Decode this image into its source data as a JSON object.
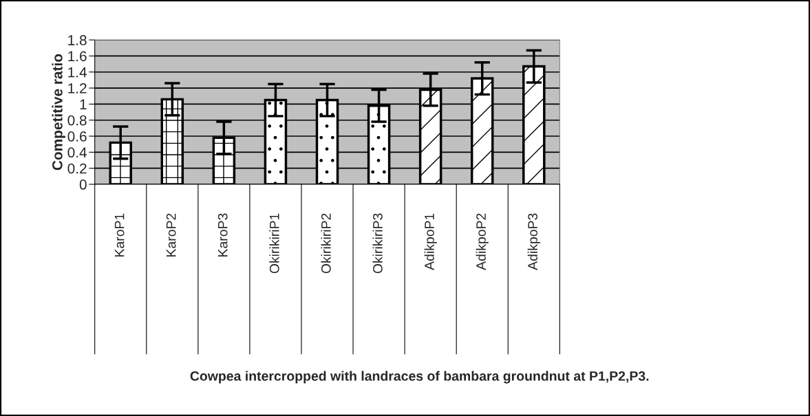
{
  "chart_data": {
    "type": "bar",
    "categories": [
      "KaroP1",
      "KaroP2",
      "KaroP3",
      "OkirikiriP1",
      "OkirikiriP2",
      "OkirikiriP3",
      "AdikpoP1",
      "AdikpoP2",
      "AdikpoP3"
    ],
    "values": [
      0.52,
      1.06,
      0.58,
      1.05,
      1.05,
      0.98,
      1.18,
      1.32,
      1.47
    ],
    "errors": [
      0.2,
      0.2,
      0.2,
      0.2,
      0.2,
      0.2,
      0.2,
      0.2,
      0.2
    ],
    "color": "#ffffff",
    "annotations": [
      "Cowpea intercropped with landraces of bambara groundnut at P1,P2,P3."
    ],
    "ylabel": "Competitive ratio",
    "ylim": [
      0,
      1.8
    ],
    "yticks": [
      0,
      0.2,
      0.4,
      0.6,
      0.8,
      1,
      1.2,
      1.4,
      1.6,
      1.8
    ],
    "grid": "y"
  }
}
